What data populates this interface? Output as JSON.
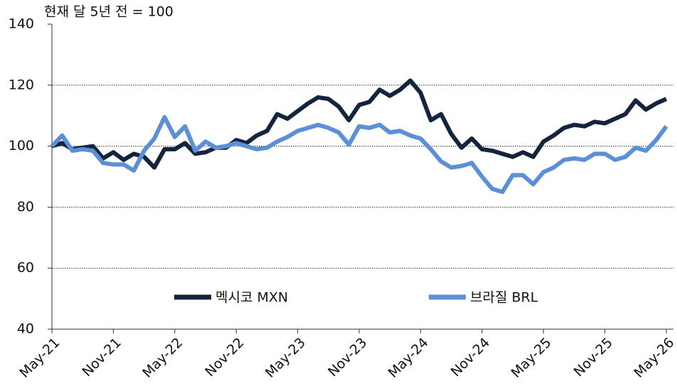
{
  "chart_data": {
    "type": "line",
    "title": "현재 달 5년 전 = 100",
    "categories": [
      "May-21",
      null,
      null,
      null,
      null,
      null,
      "Nov-21",
      null,
      null,
      null,
      null,
      null,
      "May-22",
      null,
      null,
      null,
      null,
      null,
      "Nov-22",
      null,
      null,
      null,
      null,
      null,
      "May-23",
      null,
      null,
      null,
      null,
      null,
      "Nov-23",
      null,
      null,
      null,
      null,
      null,
      "May-24",
      null,
      null,
      null,
      null,
      null,
      "Nov-24",
      null,
      null,
      null,
      null,
      null,
      "May-25",
      null,
      null,
      null,
      null,
      null,
      "Nov-25",
      null,
      null,
      null,
      null,
      null,
      "May-26"
    ],
    "series": [
      {
        "name": "멕시코 MXN",
        "color": "#15243d",
        "values": [
          100,
          101,
          99,
          99.5,
          100,
          96,
          98,
          95.5,
          97.5,
          96.5,
          93,
          99,
          99,
          101,
          97.5,
          98,
          99.5,
          99.5,
          102,
          101,
          103.5,
          105,
          110.5,
          109,
          111.5,
          114,
          116,
          115.5,
          113,
          108.5,
          113.5,
          114.5,
          118.5,
          116.5,
          118.5,
          121.5,
          117.5,
          108.5,
          110.5,
          104,
          99.5,
          102.5,
          99,
          98.5,
          97.5,
          96.5,
          98,
          96.5,
          101.5,
          103.5,
          106,
          107,
          106.5,
          108,
          107.5,
          109,
          110.5,
          115,
          112,
          114,
          115.5
        ]
      },
      {
        "name": "브라질 BRL",
        "color": "#5b8fd8",
        "values": [
          100,
          103.5,
          98.5,
          99,
          98.5,
          94.5,
          94,
          94,
          92,
          98.5,
          102.5,
          109.5,
          103,
          106.5,
          98.5,
          101.5,
          99.5,
          100,
          101,
          100,
          99,
          99.5,
          101.5,
          103,
          105,
          106,
          107,
          106,
          104.5,
          100.5,
          106.5,
          106,
          107,
          104.5,
          105,
          103.5,
          102.5,
          99,
          95,
          93,
          93.5,
          94.5,
          90,
          86,
          85,
          90.5,
          90.5,
          87.5,
          91.5,
          93,
          95.5,
          96,
          95.5,
          97.5,
          97.5,
          95.5,
          96.5,
          99.5,
          98.5,
          102,
          106.5
        ]
      }
    ],
    "ylim": [
      40,
      140
    ],
    "yticks": [
      40,
      60,
      80,
      100,
      120,
      140
    ],
    "grid": true
  }
}
